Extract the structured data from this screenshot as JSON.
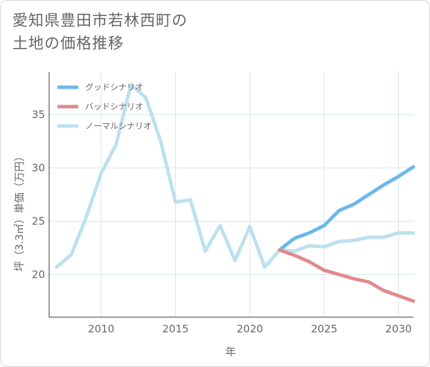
{
  "title_line1": "愛知県豊田市若林西町の",
  "title_line2": "土地の価格推移",
  "chart_data": {
    "type": "line",
    "xlabel": "年",
    "ylabel": "坪（3.3㎡）単価（万円）",
    "xlim": [
      2006.5,
      2031
    ],
    "ylim": [
      16,
      39
    ],
    "xticks": [
      2010,
      2015,
      2020,
      2025,
      2030
    ],
    "yticks": [
      20,
      25,
      30,
      35
    ],
    "grid": true,
    "legend_position": "top-left",
    "series": [
      {
        "name": "グッドシナリオ",
        "color": "#6cb8ea",
        "x": [
          2022,
          2023,
          2024,
          2025,
          2026,
          2027,
          2028,
          2029,
          2030,
          2031
        ],
        "y": [
          22.3,
          23.4,
          23.9,
          24.6,
          26.0,
          26.6,
          27.5,
          28.4,
          29.2,
          30.1
        ]
      },
      {
        "name": "バッドシナリオ",
        "color": "#e08a8e",
        "x": [
          2022,
          2023,
          2024,
          2025,
          2026,
          2027,
          2028,
          2029,
          2030,
          2031
        ],
        "y": [
          22.3,
          21.8,
          21.2,
          20.4,
          20.0,
          19.6,
          19.3,
          18.5,
          18.0,
          17.5
        ]
      },
      {
        "name": "ノーマルシナリオ",
        "color": "#bde0ee",
        "x": [
          2007,
          2008,
          2009,
          2010,
          2011,
          2012,
          2013,
          2014,
          2015,
          2016,
          2017,
          2018,
          2019,
          2020,
          2021,
          2022,
          2023,
          2024,
          2025,
          2026,
          2027,
          2028,
          2029,
          2030,
          2031
        ],
        "y": [
          20.7,
          21.9,
          25.4,
          29.5,
          32.2,
          37.8,
          36.6,
          32.5,
          26.8,
          27.0,
          22.2,
          24.6,
          21.3,
          24.5,
          20.7,
          22.3,
          22.2,
          22.7,
          22.6,
          23.1,
          23.2,
          23.5,
          23.5,
          23.9,
          23.9
        ]
      }
    ]
  }
}
